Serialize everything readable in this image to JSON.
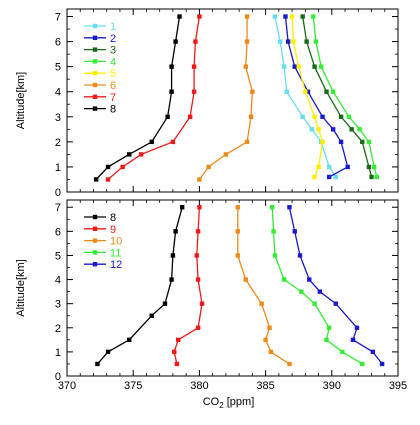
{
  "chart_data": [
    {
      "type": "line",
      "xlabel": "",
      "ylabel": "Altitude[km]",
      "xlim": [
        370,
        395
      ],
      "ylim": [
        0,
        7.3
      ],
      "xticks": [
        370,
        375,
        380,
        385,
        390,
        395
      ],
      "xtick_labels": [
        "",
        "",
        "",
        "",
        "",
        ""
      ],
      "yticks": [
        0,
        1,
        2,
        3,
        4,
        5,
        6,
        7
      ],
      "ytick_labels": [
        "0",
        "1",
        "2",
        "3",
        "4",
        "5",
        "6",
        "7"
      ],
      "legend_position": "top-left",
      "series": [
        {
          "name": "1",
          "color": "#66ddee",
          "x": [
            385.7,
            386.1,
            386.4,
            386.6,
            387.8,
            388.5,
            389.2,
            389.8,
            390.3
          ],
          "y": [
            7.0,
            6.0,
            5.0,
            4.0,
            3.0,
            2.5,
            2.0,
            1.0,
            0.6
          ]
        },
        {
          "name": "2",
          "color": "#1a1acc",
          "x": [
            386.5,
            386.7,
            387.2,
            388.2,
            389.3,
            390.1,
            390.7,
            391.2,
            389.8
          ],
          "y": [
            7.0,
            6.0,
            5.0,
            4.0,
            3.0,
            2.5,
            2.0,
            1.0,
            0.6
          ]
        },
        {
          "name": "3",
          "color": "#1a6a1a",
          "x": [
            387.8,
            388.1,
            388.7,
            389.6,
            390.7,
            391.5,
            392.3,
            392.8,
            393.0
          ],
          "y": [
            7.0,
            6.0,
            5.0,
            4.0,
            3.0,
            2.5,
            2.0,
            1.0,
            0.6
          ]
        },
        {
          "name": "4",
          "color": "#33ee33",
          "x": [
            388.6,
            388.8,
            389.2,
            390.1,
            391.3,
            392.1,
            392.8,
            393.2,
            393.4
          ],
          "y": [
            7.0,
            6.0,
            5.0,
            4.0,
            3.0,
            2.5,
            2.0,
            1.0,
            0.6
          ]
        },
        {
          "name": "5",
          "color": "#ffee00",
          "x": [
            387.0,
            387.1,
            387.5,
            388.0,
            388.7,
            389.0,
            389.3,
            389.0,
            388.7
          ],
          "y": [
            7.0,
            6.0,
            5.0,
            4.0,
            3.0,
            2.5,
            2.0,
            1.0,
            0.6
          ]
        },
        {
          "name": "6",
          "color": "#ee8a1a",
          "x": [
            383.6,
            383.6,
            383.5,
            384.0,
            383.9,
            383.6,
            382.0,
            380.7,
            380.0
          ],
          "y": [
            7.0,
            6.0,
            5.0,
            4.0,
            3.0,
            2.0,
            1.5,
            1.0,
            0.5
          ]
        },
        {
          "name": "7",
          "color": "#ee1a1a",
          "x": [
            380.0,
            379.7,
            379.6,
            379.6,
            379.3,
            378.0,
            375.6,
            374.2,
            373.1
          ],
          "y": [
            7.0,
            6.0,
            5.0,
            4.0,
            3.0,
            2.0,
            1.5,
            1.0,
            0.5
          ]
        },
        {
          "name": "8",
          "color": "#000000",
          "x": [
            378.5,
            378.2,
            377.9,
            377.9,
            377.6,
            376.4,
            374.7,
            373.1,
            372.2
          ],
          "y": [
            7.0,
            6.0,
            5.0,
            4.0,
            3.0,
            2.0,
            1.5,
            1.0,
            0.5
          ]
        }
      ]
    },
    {
      "type": "line",
      "xlabel": "CO2 [ppm]",
      "ylabel": "Altitude[km]",
      "xlim": [
        370,
        395
      ],
      "ylim": [
        0,
        7.3
      ],
      "xticks": [
        370,
        375,
        380,
        385,
        390,
        395
      ],
      "xtick_labels": [
        "370",
        "375",
        "380",
        "385",
        "390",
        "395"
      ],
      "yticks": [
        0,
        1,
        2,
        3,
        4,
        5,
        6,
        7
      ],
      "ytick_labels": [
        "0",
        "1",
        "2",
        "3",
        "4",
        "5",
        "6",
        "7"
      ],
      "legend_position": "top-left",
      "series": [
        {
          "name": "8",
          "color": "#000000",
          "x": [
            378.7,
            378.2,
            378.0,
            377.9,
            377.4,
            376.4,
            374.7,
            373.1,
            372.3
          ],
          "y": [
            7.0,
            6.0,
            5.0,
            4.0,
            3.0,
            2.5,
            1.5,
            1.0,
            0.5
          ]
        },
        {
          "name": "9",
          "color": "#ee1a1a",
          "x": [
            380.0,
            379.9,
            379.8,
            379.9,
            380.2,
            379.9,
            378.4,
            378.1,
            378.3
          ],
          "y": [
            7.0,
            6.0,
            5.0,
            4.0,
            3.0,
            2.0,
            1.5,
            1.0,
            0.5
          ]
        },
        {
          "name": "10",
          "color": "#ee8a1a",
          "x": [
            382.9,
            382.9,
            382.9,
            383.5,
            384.7,
            385.3,
            385.0,
            385.4,
            386.8
          ],
          "y": [
            7.0,
            6.0,
            5.0,
            4.0,
            3.0,
            2.0,
            1.5,
            1.0,
            0.5
          ]
        },
        {
          "name": "11",
          "color": "#33ee33",
          "x": [
            385.5,
            385.6,
            385.7,
            386.4,
            387.7,
            388.7,
            389.8,
            389.6,
            390.8,
            392.3
          ],
          "y": [
            7.0,
            6.0,
            5.0,
            4.0,
            3.5,
            3.0,
            2.0,
            1.5,
            1.0,
            0.5
          ]
        },
        {
          "name": "12",
          "color": "#1a1acc",
          "x": [
            386.8,
            387.2,
            387.6,
            388.3,
            389.1,
            390.3,
            391.9,
            391.6,
            393.1,
            393.8
          ],
          "y": [
            7.0,
            6.0,
            5.0,
            4.0,
            3.5,
            3.0,
            2.0,
            1.5,
            1.0,
            0.5
          ]
        }
      ]
    }
  ]
}
